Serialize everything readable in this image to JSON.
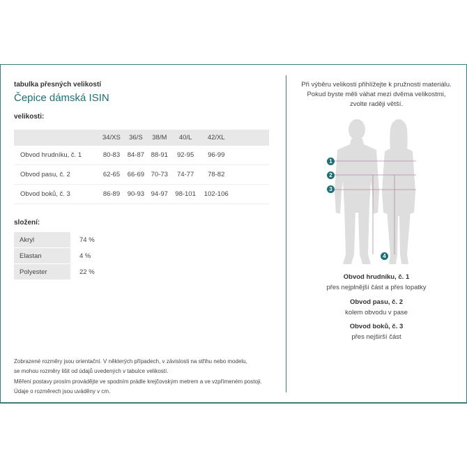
{
  "header": {
    "subtitle": "tabulka přesných velikostí",
    "title": "Čepice dámská ISIN"
  },
  "sizes": {
    "label": "velikosti:",
    "columns": [
      "",
      "34/XS",
      "36/S",
      "38/M",
      "40/L",
      "42/XL"
    ],
    "rows": [
      [
        "Obvod hrudníku, č. 1",
        "80-83",
        "84-87",
        "88-91",
        "92-95",
        "96-99"
      ],
      [
        "Obvod pasu, č. 2",
        "62-65",
        "66-69",
        "70-73",
        "74-77",
        "78-82"
      ],
      [
        "Obvod boků, č. 3",
        "86-89",
        "90-93",
        "94-97",
        "98-101",
        "102-106"
      ]
    ]
  },
  "composition": {
    "label": "složení:",
    "rows": [
      [
        "Akryl",
        "74 %"
      ],
      [
        "Elastan",
        "4 %"
      ],
      [
        "Polyester",
        "22 %"
      ]
    ]
  },
  "hint": [
    "Při výběru velikosti přihlížejte k pružnosti materiálu.",
    "Pokud byste měli váhat mezi dvěma velikostmi,",
    "zvolte raději větší."
  ],
  "markers": [
    "1",
    "2",
    "3",
    "4"
  ],
  "captions": [
    {
      "title": "Obvod hrudníku, č. 1",
      "text": "přes nejplnější část a přes lopatky"
    },
    {
      "title": "Obvod pasu, č. 2",
      "text": "kolem obvodu v pase"
    },
    {
      "title": "Obvod boků, č. 3",
      "text": "přes nejširší část"
    }
  ],
  "footer": [
    "Zobrazené rozměry jsou orientační. V některých případech, v závislosti na střihu nebo modelu,",
    "se mohou rozměry lišit od údajů uvedených v tabulce velikostí.",
    "Měření postavy prosím provádějte ve spodním prádle krejčovským metrem a ve vzpřímeném postoji.",
    "Údaje o rozměrech jsou uváděny v cm."
  ],
  "colors": {
    "accent": "#1e6f74",
    "border": "#3f7a7a",
    "header_bg": "#e8e8e8",
    "line": "#b08aa0"
  }
}
